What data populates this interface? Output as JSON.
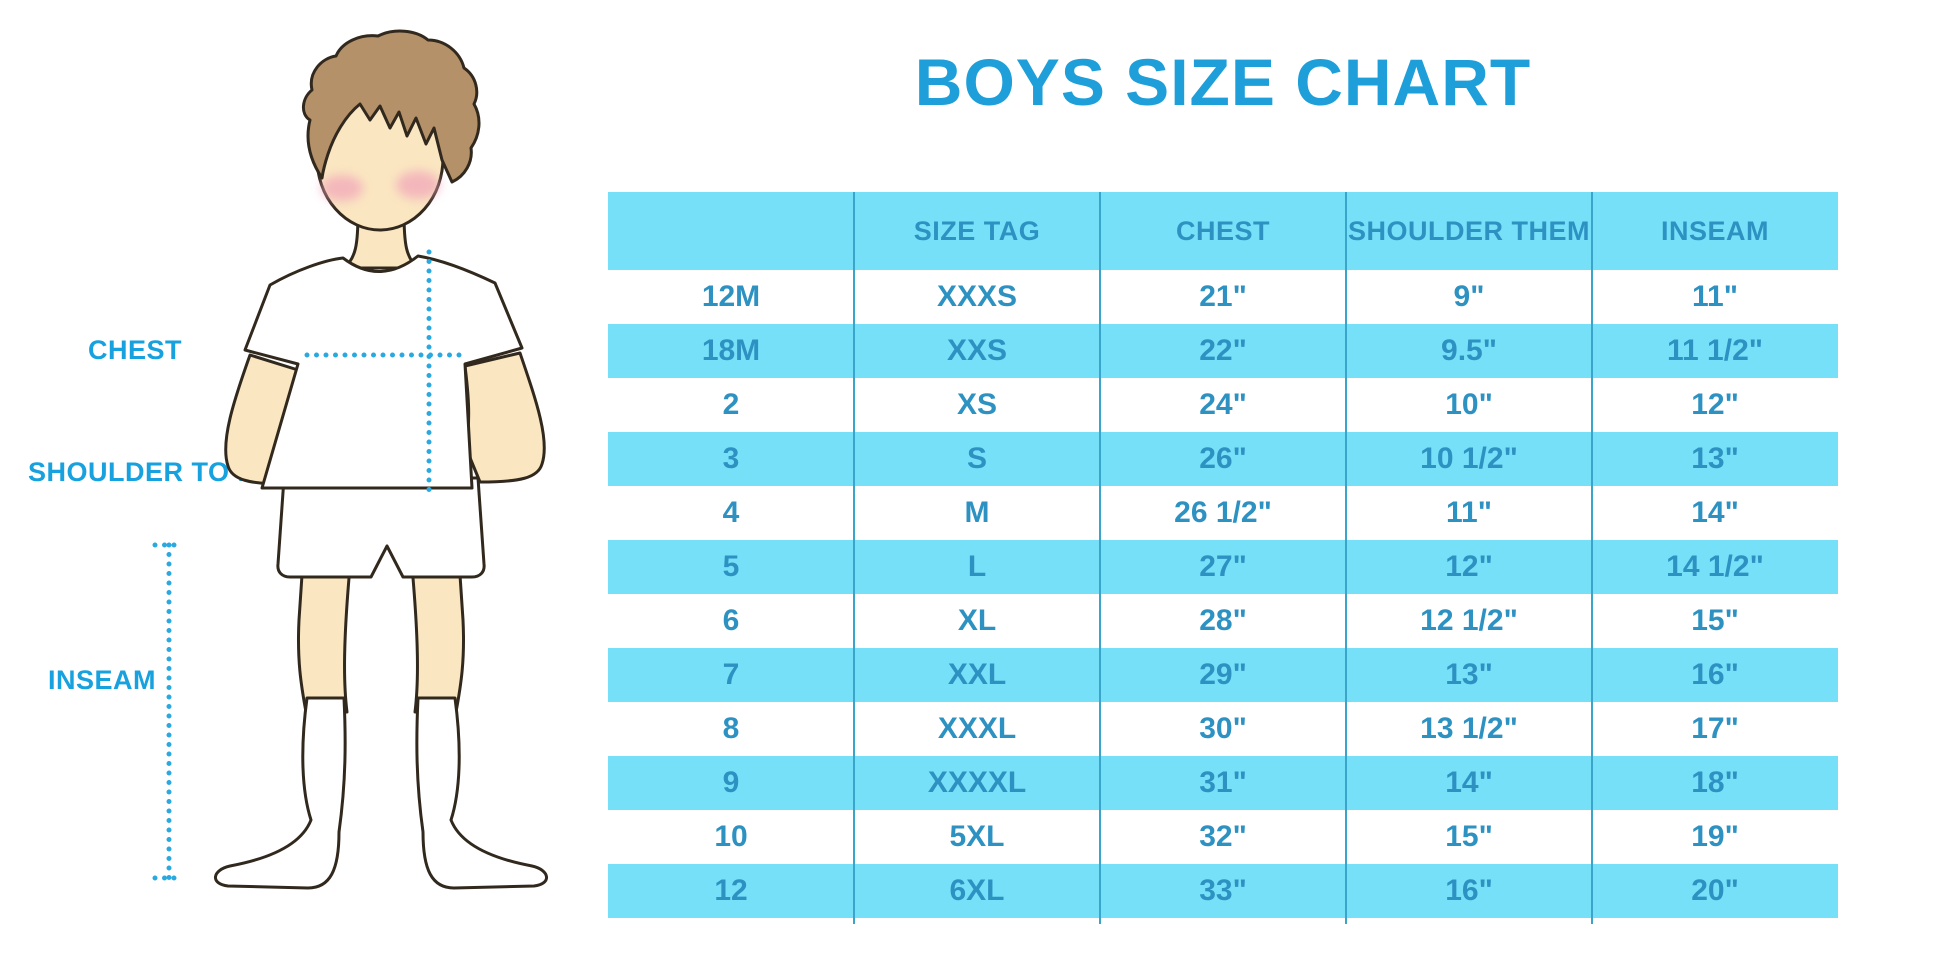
{
  "title": {
    "text": "BOYS SIZE CHART"
  },
  "figure": {
    "labels": {
      "chest": "CHEST",
      "shoulder_to_hem": "SHOULDER TO HEM",
      "inseam": "INSEAM"
    }
  },
  "chart_data": {
    "type": "table",
    "title": "BOYS SIZE CHART",
    "columns": [
      "",
      "SIZE TAG",
      "CHEST",
      "SHOULDER THEM",
      "INSEAM"
    ],
    "rows": [
      [
        "12M",
        "XXXS",
        "21\"",
        "9\"",
        "11\""
      ],
      [
        "18M",
        "XXS",
        "22\"",
        "9.5\"",
        "11 1/2\""
      ],
      [
        "2",
        "XS",
        "24\"",
        "10\"",
        "12\""
      ],
      [
        "3",
        "S",
        "26\"",
        "10 1/2\"",
        "13\""
      ],
      [
        "4",
        "M",
        "26 1/2\"",
        "11\"",
        "14\""
      ],
      [
        "5",
        "L",
        "27\"",
        "12\"",
        "14 1/2\""
      ],
      [
        "6",
        "XL",
        "28\"",
        "12 1/2\"",
        "15\""
      ],
      [
        "7",
        "XXL",
        "29\"",
        "13\"",
        "16\""
      ],
      [
        "8",
        "XXXL",
        "30\"",
        "13 1/2\"",
        "17\""
      ],
      [
        "9",
        "XXXXL",
        "31\"",
        "14\"",
        "18\""
      ],
      [
        "10",
        "5XL",
        "32\"",
        "15\"",
        "19\""
      ],
      [
        "12",
        "6XL",
        "33\"",
        "16\"",
        "20\""
      ]
    ],
    "layout": {
      "alternating_rows": "white / light-cyan starting white",
      "gridlines": "vertical inner dividers only"
    }
  },
  "colors": {
    "title_text": "#1E9FD9",
    "label_text": "#17A1DE",
    "measure_line": "#2AA9E0",
    "table_header_bg": "#76E0F8",
    "table_alt_row_bg": "#76E0F8",
    "table_row_bg": "#FFFFFF",
    "table_text": "#2D92C2",
    "table_divider": "#3AA5CA",
    "skin": "#FAE6C1",
    "hair": "#B5916A",
    "outline": "#32291E",
    "blush": "#F1A4B9",
    "garment": "#FFFFFF",
    "page_bg": "#FFFFFF"
  }
}
